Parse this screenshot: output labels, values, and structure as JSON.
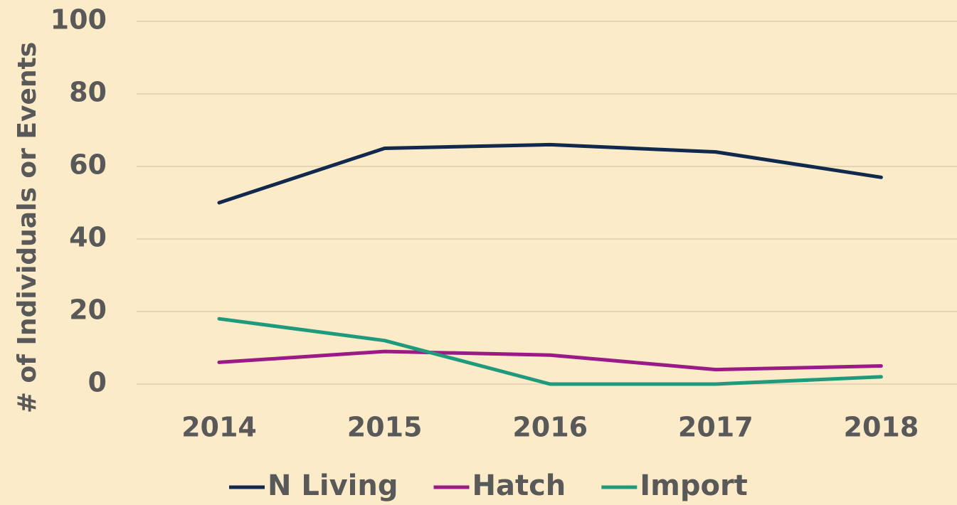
{
  "chart_data": {
    "type": "line",
    "y_label": "# of Individuals or Events",
    "categories": [
      "2014",
      "2015",
      "2016",
      "2017",
      "2018"
    ],
    "series": [
      {
        "name": "N Living",
        "color": "#10294d",
        "values": [
          50,
          65,
          66,
          64,
          57
        ]
      },
      {
        "name": "Hatch",
        "color": "#9b1b86",
        "values": [
          6,
          9,
          8,
          4,
          5
        ]
      },
      {
        "name": "Import",
        "color": "#1f9b7c",
        "values": [
          18,
          12,
          0,
          0,
          2
        ]
      }
    ],
    "ylim": [
      0,
      100
    ],
    "yticks": [
      0,
      20,
      40,
      60,
      80,
      100
    ],
    "grid": true,
    "legend": "bottom"
  }
}
